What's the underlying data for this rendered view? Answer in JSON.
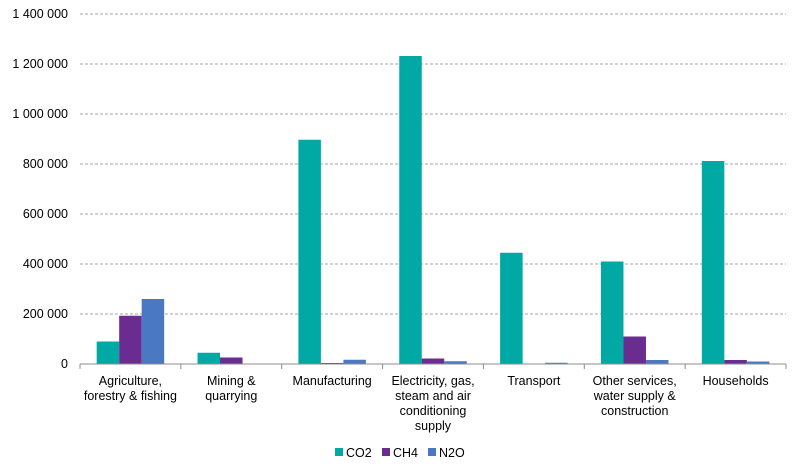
{
  "chart_data": {
    "type": "bar",
    "title": "",
    "xlabel": "",
    "ylabel": "",
    "ylim": [
      0,
      1400000
    ],
    "yticks": [
      0,
      200000,
      400000,
      600000,
      800000,
      1000000,
      1200000,
      1400000
    ],
    "ytick_labels": [
      "0",
      "200 000",
      "400 000",
      "600 000",
      "800 000",
      "1 000 000",
      "1 200 000",
      "1 400 000"
    ],
    "grid": true,
    "legend_position": "bottom",
    "categories": [
      [
        "Agriculture,",
        "forestry & fishing"
      ],
      [
        "Mining &",
        "quarrying"
      ],
      [
        "Manufacturing"
      ],
      [
        "Electricity, gas,",
        "steam and air",
        "conditioning",
        "supply"
      ],
      [
        "Transport"
      ],
      [
        "Other services,",
        "water supply &",
        "construction"
      ],
      [
        "Households"
      ]
    ],
    "series": [
      {
        "name": "CO2",
        "color": "#00a9a4",
        "values": [
          90000,
          45000,
          897000,
          1232000,
          445000,
          410000,
          812000
        ]
      },
      {
        "name": "CH4",
        "color": "#6a2c91",
        "values": [
          193000,
          26000,
          4000,
          22000,
          1000,
          110000,
          16000
        ]
      },
      {
        "name": "N2O",
        "color": "#4a78c2",
        "values": [
          260000,
          1000,
          17000,
          11000,
          5000,
          16000,
          10000
        ]
      }
    ]
  }
}
